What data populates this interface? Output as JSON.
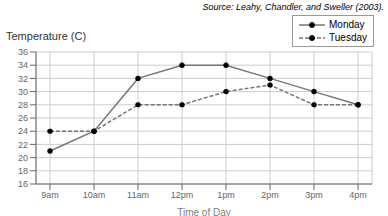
{
  "chart_data": {
    "type": "line",
    "ylabel": "Temperature (C)",
    "xlabel": "Time of Day",
    "annotations": [
      "Source: Leahy, Chandler, and Sweller (2003)."
    ],
    "categories": [
      "9am",
      "10am",
      "11am",
      "12pm",
      "1pm",
      "2pm",
      "3pm",
      "4pm"
    ],
    "series": [
      {
        "name": "Monday",
        "color": "#777777",
        "marker": "circle",
        "line_style": "solid",
        "values": [
          21,
          24,
          32,
          34,
          34,
          32,
          30,
          28
        ]
      },
      {
        "name": "Tuesday",
        "color": "#777777",
        "marker": "circle",
        "line_style": "dashed",
        "values": [
          24,
          24,
          28,
          28,
          30,
          31,
          28,
          28
        ]
      }
    ],
    "ylim": [
      16,
      36
    ],
    "yticks": [
      16,
      18,
      20,
      22,
      24,
      26,
      28,
      30,
      32,
      34,
      36
    ],
    "grid": true,
    "legend": "upper right"
  }
}
